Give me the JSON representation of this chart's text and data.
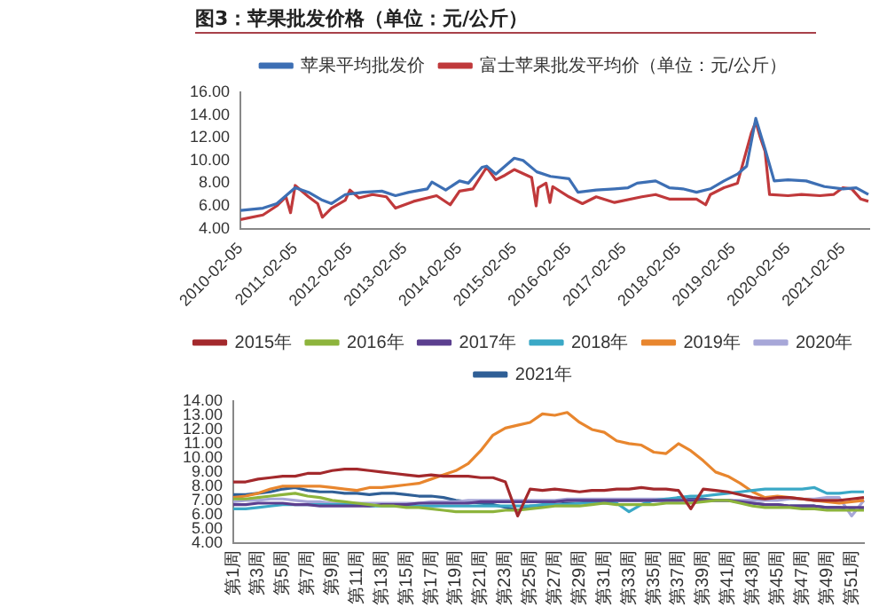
{
  "chart_data": [
    {
      "type": "line",
      "title": "图3：苹果批发价格（单位：元/公斤）",
      "legend": "top",
      "marker": "none",
      "xlim": [
        "2010-02-05",
        "2021-07-31"
      ],
      "xticks": [
        "2010-02-05",
        "2011-02-05",
        "2012-02-05",
        "2013-02-05",
        "2014-02-05",
        "2015-02-05",
        "2016-02-05",
        "2017-02-05",
        "2018-02-05",
        "2019-02-05",
        "2020-02-05",
        "2021-02-05"
      ],
      "ylim": [
        4,
        16
      ],
      "yticks": [
        {
          "value": 4,
          "label": "4.00"
        },
        {
          "value": 6,
          "label": "6.00"
        },
        {
          "value": 8,
          "label": "8.00"
        },
        {
          "value": 10,
          "label": "10.00"
        },
        {
          "value": 12,
          "label": "12.00"
        },
        {
          "value": 14,
          "label": "14.00"
        },
        {
          "value": 16,
          "label": "16.00"
        }
      ],
      "series": [
        {
          "name": "苹果平均批发价",
          "color": "#3d6fb4",
          "x": [
            "2010-02-05",
            "2010-07-05",
            "2010-10-05",
            "2011-02-05",
            "2011-05-05",
            "2011-08-05",
            "2011-10-05",
            "2012-01-05",
            "2012-05-05",
            "2012-09-05",
            "2012-12-05",
            "2013-03-05",
            "2013-07-05",
            "2013-08-05",
            "2013-11-05",
            "2014-02-05",
            "2014-04-05",
            "2014-07-05",
            "2014-08-05",
            "2014-10-05",
            "2015-02-05",
            "2015-04-05",
            "2015-07-05",
            "2015-10-05",
            "2016-02-05",
            "2016-04-05",
            "2016-08-05",
            "2016-12-05",
            "2017-03-05",
            "2017-05-05",
            "2017-09-05",
            "2017-12-05",
            "2018-03-05",
            "2018-06-05",
            "2018-09-05",
            "2018-12-05",
            "2019-03-05",
            "2019-05-05",
            "2019-07-05",
            "2019-09-05",
            "2019-11-05",
            "2020-02-05",
            "2020-06-05",
            "2020-10-05",
            "2021-02-05",
            "2021-05-05",
            "2021-07-25"
          ],
          "values": [
            5.6,
            5.8,
            6.2,
            7.6,
            7.2,
            6.5,
            6.2,
            7.0,
            7.2,
            7.3,
            6.9,
            7.2,
            7.5,
            8.1,
            7.4,
            8.2,
            8.0,
            9.4,
            9.5,
            8.8,
            10.2,
            10.0,
            9.0,
            8.6,
            8.4,
            7.2,
            7.4,
            7.5,
            7.6,
            8.0,
            8.2,
            7.6,
            7.5,
            7.2,
            7.5,
            8.2,
            8.8,
            9.5,
            13.7,
            11.0,
            8.2,
            8.3,
            8.2,
            7.7,
            7.5,
            7.6,
            7.0
          ]
        },
        {
          "name": "富士苹果批发平均价（单位：元/公斤）",
          "color": "#c0393b",
          "x": [
            "2010-02-05",
            "2010-07-05",
            "2010-10-05",
            "2010-12-05",
            "2011-01-05",
            "2011-02-05",
            "2011-05-05",
            "2011-07-05",
            "2011-08-05",
            "2011-10-05",
            "2012-01-05",
            "2012-02-05",
            "2012-04-05",
            "2012-07-05",
            "2012-10-05",
            "2012-12-05",
            "2013-04-05",
            "2013-09-05",
            "2013-12-05",
            "2014-02-05",
            "2014-05-05",
            "2014-08-05",
            "2014-10-05",
            "2014-12-05",
            "2015-02-05",
            "2015-06-01",
            "2015-07-01",
            "2015-07-15",
            "2015-09-05",
            "2015-10-01",
            "2015-10-20",
            "2016-02-05",
            "2016-05-05",
            "2016-08-05",
            "2016-12-05",
            "2017-06-05",
            "2017-09-05",
            "2017-12-05",
            "2018-03-05",
            "2018-06-05",
            "2018-08-05",
            "2018-09-05",
            "2018-12-05",
            "2019-03-05",
            "2019-06-05",
            "2019-07-05",
            "2019-08-05",
            "2019-09-05",
            "2019-10-05",
            "2020-02-05",
            "2020-05-05",
            "2020-09-05",
            "2020-12-05",
            "2021-02-05",
            "2021-04-05",
            "2021-06-05",
            "2021-07-25"
          ],
          "values": [
            4.8,
            5.2,
            6.0,
            6.8,
            5.4,
            7.8,
            6.8,
            6.2,
            5.0,
            5.8,
            6.5,
            7.4,
            6.7,
            7.0,
            6.8,
            5.8,
            6.4,
            6.9,
            6.1,
            7.3,
            7.5,
            9.4,
            8.3,
            8.7,
            9.2,
            8.5,
            6.0,
            7.6,
            8.0,
            6.3,
            7.7,
            6.8,
            6.2,
            6.8,
            6.3,
            6.8,
            7.0,
            6.6,
            6.6,
            6.6,
            6.1,
            7.0,
            7.6,
            8.0,
            12.4,
            13.4,
            12.0,
            10.8,
            7.0,
            6.9,
            7.0,
            6.9,
            7.0,
            7.6,
            7.5,
            6.6,
            6.4
          ]
        }
      ]
    },
    {
      "type": "line",
      "legend": "top",
      "marker": "none",
      "categories": [
        "第1周",
        null,
        "第3周",
        null,
        "第5周",
        null,
        "第7周",
        null,
        "第9周",
        null,
        "第11周",
        null,
        "第13周",
        null,
        "第15周",
        null,
        "第17周",
        null,
        "第19周",
        null,
        "第21周",
        null,
        "第23周",
        null,
        "第25周",
        null,
        "第27周",
        null,
        "第29周",
        null,
        "第31周",
        null,
        "第33周",
        null,
        "第35周",
        null,
        "第37周",
        null,
        "第39周",
        null,
        "第41周",
        null,
        "第43周",
        null,
        "第45周",
        null,
        "第47周",
        null,
        "第49周",
        null,
        "第51周",
        null
      ],
      "ylim": [
        4,
        14
      ],
      "yticks": [
        {
          "value": 4,
          "label": "4.00"
        },
        {
          "value": 5,
          "label": "5.00"
        },
        {
          "value": 6,
          "label": "6.00"
        },
        {
          "value": 7,
          "label": "7.00"
        },
        {
          "value": 8,
          "label": "8.00"
        },
        {
          "value": 9,
          "label": "9.00"
        },
        {
          "value": 10,
          "label": "10.00"
        },
        {
          "value": 11,
          "label": "11.00"
        },
        {
          "value": 12,
          "label": "12.00"
        },
        {
          "value": 13,
          "label": "13.00"
        },
        {
          "value": 14,
          "label": "14.00"
        }
      ],
      "series": [
        {
          "name": "2015年",
          "color": "#a3292c",
          "values": [
            8.3,
            8.3,
            8.5,
            8.6,
            8.7,
            8.7,
            8.9,
            8.9,
            9.1,
            9.2,
            9.2,
            9.1,
            9.0,
            8.9,
            8.8,
            8.7,
            8.8,
            8.7,
            8.7,
            8.7,
            8.6,
            8.6,
            8.3,
            5.9,
            7.8,
            7.7,
            7.8,
            7.7,
            7.6,
            7.7,
            7.7,
            7.8,
            7.8,
            7.9,
            7.8,
            7.8,
            7.7,
            6.4,
            7.8,
            7.7,
            7.6,
            7.4,
            7.2,
            7.1,
            7.2,
            7.2,
            7.1,
            7.0,
            7.0,
            7.0,
            7.1,
            7.2
          ]
        },
        {
          "name": "2016年",
          "color": "#8db43c",
          "values": [
            7.1,
            7.1,
            7.2,
            7.3,
            7.4,
            7.5,
            7.3,
            7.2,
            7.0,
            6.9,
            6.8,
            6.7,
            6.6,
            6.6,
            6.5,
            6.5,
            6.4,
            6.3,
            6.2,
            6.2,
            6.2,
            6.2,
            6.3,
            6.3,
            6.4,
            6.5,
            6.6,
            6.6,
            6.6,
            6.7,
            6.8,
            6.7,
            6.7,
            6.7,
            6.7,
            6.8,
            6.8,
            6.8,
            6.9,
            7.0,
            7.0,
            6.8,
            6.6,
            6.5,
            6.5,
            6.5,
            6.4,
            6.4,
            6.3,
            6.3,
            6.3,
            6.3
          ]
        },
        {
          "name": "2017年",
          "color": "#5b3f8f",
          "values": [
            6.7,
            6.7,
            6.8,
            6.8,
            6.8,
            6.7,
            6.7,
            6.6,
            6.6,
            6.6,
            6.6,
            6.6,
            6.7,
            6.7,
            6.7,
            6.8,
            6.8,
            6.8,
            6.8,
            6.8,
            6.9,
            6.9,
            6.9,
            6.9,
            6.9,
            6.9,
            6.9,
            7.0,
            7.0,
            7.0,
            7.0,
            7.0,
            7.0,
            7.0,
            7.0,
            7.0,
            7.0,
            7.0,
            7.0,
            7.0,
            7.0,
            6.9,
            6.8,
            6.7,
            6.7,
            6.6,
            6.6,
            6.6,
            6.5,
            6.5,
            6.5,
            6.5
          ]
        },
        {
          "name": "2018年",
          "color": "#3aa8c6",
          "values": [
            6.4,
            6.4,
            6.5,
            6.6,
            6.7,
            6.7,
            6.7,
            6.7,
            6.7,
            6.7,
            6.7,
            6.6,
            6.6,
            6.6,
            6.6,
            6.6,
            6.6,
            6.6,
            6.6,
            6.6,
            6.6,
            6.6,
            6.6,
            6.6,
            6.6,
            6.7,
            6.7,
            6.7,
            6.8,
            6.8,
            6.8,
            6.8,
            6.2,
            6.7,
            7.0,
            7.1,
            7.2,
            7.3,
            7.3,
            7.4,
            7.5,
            7.6,
            7.7,
            7.8,
            7.8,
            7.8,
            7.8,
            7.9,
            7.5,
            7.5,
            7.6,
            7.6
          ]
        },
        {
          "name": "2019年",
          "color": "#e8862e",
          "values": [
            7.2,
            7.3,
            7.5,
            7.8,
            8.0,
            8.0,
            8.0,
            8.0,
            7.9,
            7.8,
            7.7,
            7.9,
            7.9,
            8.0,
            8.1,
            8.2,
            8.5,
            8.8,
            9.1,
            9.6,
            10.5,
            11.6,
            12.1,
            12.3,
            12.5,
            13.1,
            13.0,
            13.2,
            12.5,
            12.0,
            11.8,
            11.2,
            11.0,
            10.9,
            10.4,
            10.3,
            11.0,
            10.5,
            9.8,
            9.0,
            8.7,
            8.2,
            7.6,
            7.2,
            7.3,
            7.2,
            7.1,
            7.0,
            6.9,
            6.8,
            6.9,
            7.0
          ]
        },
        {
          "name": "2020年",
          "color": "#a7a7d8",
          "values": [
            6.9,
            7.0,
            7.0,
            7.1,
            7.1,
            7.0,
            6.9,
            6.9,
            6.8,
            6.8,
            6.8,
            6.8,
            6.8,
            6.8,
            6.8,
            6.8,
            6.9,
            6.9,
            6.9,
            7.0,
            7.0,
            7.0,
            7.0,
            7.0,
            7.0,
            7.0,
            7.0,
            7.1,
            7.1,
            7.1,
            7.1,
            7.1,
            7.1,
            7.1,
            7.1,
            7.1,
            7.0,
            7.0,
            7.0,
            7.0,
            7.0,
            7.0,
            7.0,
            7.0,
            7.0,
            7.1,
            7.1,
            7.1,
            7.2,
            7.2,
            5.9,
            7.0
          ]
        },
        {
          "name": "2021年",
          "color": "#2f5f96",
          "values": [
            7.4,
            7.4,
            7.5,
            7.6,
            7.8,
            7.9,
            7.7,
            7.6,
            7.6,
            7.5,
            7.5,
            7.4,
            7.5,
            7.5,
            7.4,
            7.3,
            7.3,
            7.2,
            7.0,
            6.9,
            6.8,
            6.7,
            6.5,
            6.3,
            6.6,
            6.6,
            6.7,
            6.8,
            6.8,
            6.9,
            6.9,
            7.0,
            7.0,
            7.0,
            7.0,
            7.0,
            7.0,
            7.1,
            7.1,
            7.0,
            7.0,
            6.9,
            6.8,
            6.7,
            6.7,
            6.6,
            6.6,
            6.6,
            6.5,
            6.5,
            6.4,
            6.4
          ]
        }
      ]
    }
  ]
}
